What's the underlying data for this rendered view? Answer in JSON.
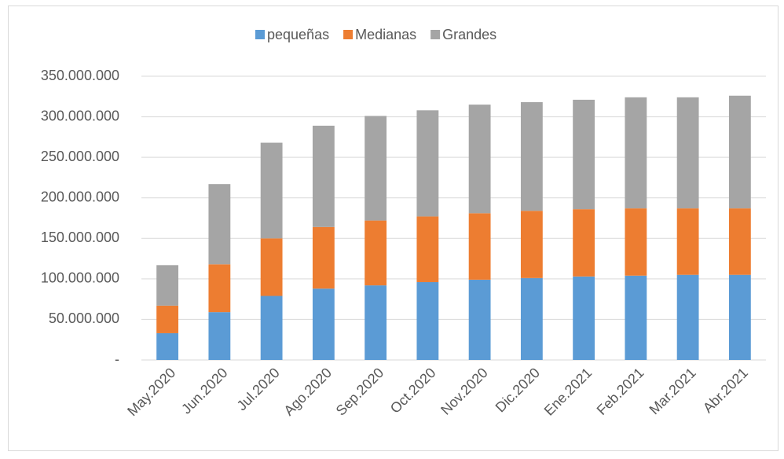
{
  "chart_data": {
    "type": "stacked_bar",
    "categories": [
      "May.2020",
      "Jun.2020",
      "Jul.2020",
      "Ago.2020",
      "Sep.2020",
      "Oct.2020",
      "Nov.2020",
      "Dic.2020",
      "Ene.2021",
      "Feb.2021",
      "Mar.2021",
      "Abr.2021"
    ],
    "series": [
      {
        "name": "pequeñas",
        "color": "#5b9bd5",
        "values": [
          33000000,
          59000000,
          79000000,
          88000000,
          92000000,
          96000000,
          99000000,
          101000000,
          103000000,
          104000000,
          105000000,
          105000000
        ]
      },
      {
        "name": "Medianas",
        "color": "#ed7d31",
        "values": [
          34000000,
          59000000,
          71000000,
          76000000,
          80000000,
          81000000,
          82000000,
          83000000,
          83000000,
          83000000,
          82000000,
          82000000
        ]
      },
      {
        "name": "Grandes",
        "color": "#a5a5a5",
        "values": [
          50000000,
          99000000,
          118000000,
          125000000,
          129000000,
          131000000,
          134000000,
          134000000,
          135000000,
          137000000,
          137000000,
          139000000
        ]
      }
    ],
    "ylim": [
      0,
      350000000
    ],
    "yticks": [
      {
        "value": 0,
        "label": "-"
      },
      {
        "value": 50000000,
        "label": "50.000.000"
      },
      {
        "value": 100000000,
        "label": "100.000.000"
      },
      {
        "value": 150000000,
        "label": "150.000.000"
      },
      {
        "value": 200000000,
        "label": "200.000.000"
      },
      {
        "value": 250000000,
        "label": "250.000.000"
      },
      {
        "value": 300000000,
        "label": "300.000.000"
      },
      {
        "value": 350000000,
        "label": "350.000.000"
      }
    ],
    "grid": true,
    "legend": "top"
  }
}
